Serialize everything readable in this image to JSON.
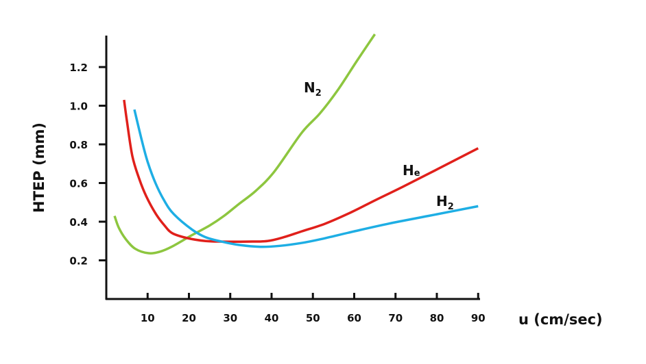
{
  "chart_data": {
    "type": "line",
    "title": "",
    "xlabel": "u (cm/sec)",
    "ylabel": "HTEP (mm)",
    "xlim": [
      0,
      90
    ],
    "ylim": [
      0,
      1.35
    ],
    "xticks": [
      10,
      20,
      30,
      40,
      50,
      60,
      70,
      80,
      90
    ],
    "yticks": [
      0.2,
      0.4,
      0.6,
      0.8,
      1.0,
      1.2
    ],
    "xtick_labels": [
      "10",
      "20",
      "30",
      "40",
      "50",
      "60",
      "70",
      "80",
      "90"
    ],
    "ytick_labels": [
      "0.2",
      "0.4",
      "0.6",
      "0.8",
      "1.0",
      "1.2"
    ],
    "grid": false,
    "legend": "none (curves labelled directly)",
    "series": [
      {
        "name": "N2",
        "label_main": "N",
        "label_sub": "2",
        "color": "#8dc63f",
        "points": [
          [
            2,
            0.43
          ],
          [
            3,
            0.37
          ],
          [
            4.7,
            0.31
          ],
          [
            7,
            0.26
          ],
          [
            10.2,
            0.237
          ],
          [
            13,
            0.245
          ],
          [
            15.8,
            0.27
          ],
          [
            20.7,
            0.33
          ],
          [
            25,
            0.38
          ],
          [
            28.5,
            0.43
          ],
          [
            32,
            0.49
          ],
          [
            36.2,
            0.56
          ],
          [
            40.7,
            0.66
          ],
          [
            47.3,
            0.86
          ],
          [
            51.7,
            0.96
          ],
          [
            56,
            1.08
          ],
          [
            60.6,
            1.23
          ],
          [
            65,
            1.37
          ]
        ]
      },
      {
        "name": "He",
        "label_main": "H",
        "label_sub": "e",
        "color": "#e0201b",
        "points": [
          [
            4.3,
            1.03
          ],
          [
            5,
            0.92
          ],
          [
            6.3,
            0.74
          ],
          [
            8,
            0.62
          ],
          [
            9.7,
            0.53
          ],
          [
            12,
            0.44
          ],
          [
            14.1,
            0.38
          ],
          [
            16,
            0.34
          ],
          [
            19.6,
            0.315
          ],
          [
            24,
            0.3
          ],
          [
            28,
            0.297
          ],
          [
            34,
            0.297
          ],
          [
            39,
            0.3
          ],
          [
            43,
            0.32
          ],
          [
            47.3,
            0.35
          ],
          [
            53,
            0.39
          ],
          [
            59.4,
            0.45
          ],
          [
            65,
            0.51
          ],
          [
            71.7,
            0.58
          ],
          [
            80,
            0.67
          ],
          [
            90,
            0.78
          ]
        ]
      },
      {
        "name": "H2",
        "label_main": "H",
        "label_sub": "2",
        "color": "#1eaee4",
        "points": [
          [
            6.8,
            0.98
          ],
          [
            8.6,
            0.82
          ],
          [
            10,
            0.71
          ],
          [
            11.9,
            0.6
          ],
          [
            14,
            0.51
          ],
          [
            16.3,
            0.44
          ],
          [
            20.7,
            0.36
          ],
          [
            24,
            0.32
          ],
          [
            27.9,
            0.297
          ],
          [
            32,
            0.28
          ],
          [
            37.3,
            0.27
          ],
          [
            42,
            0.275
          ],
          [
            47.3,
            0.29
          ],
          [
            52,
            0.31
          ],
          [
            60,
            0.35
          ],
          [
            68.4,
            0.39
          ],
          [
            78,
            0.43
          ],
          [
            90,
            0.48
          ]
        ]
      }
    ]
  }
}
